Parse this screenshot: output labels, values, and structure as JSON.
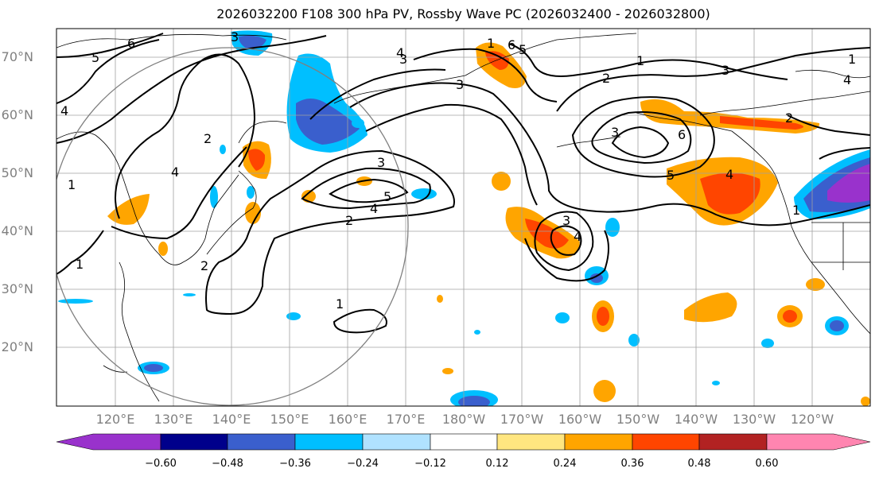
{
  "title": "2026032200 F108 300 hPa PV, Rossby Wave PC (2026032400 - 2026032800)",
  "latitude_labels": [
    "70°N",
    "60°N",
    "50°N",
    "40°N",
    "30°N",
    "20°N"
  ],
  "longitude_labels": [
    "120°E",
    "130°E",
    "140°E",
    "150°E",
    "160°E",
    "170°E",
    "180°W",
    "170°W",
    "160°W",
    "150°W",
    "140°W",
    "130°W",
    "120°W"
  ],
  "colorbar": {
    "tick_labels": [
      "−0.60",
      "−0.48",
      "−0.36",
      "−0.24",
      "−0.12",
      "0.12",
      "0.24",
      "0.36",
      "0.48",
      "0.60"
    ],
    "colors": [
      "#9932cc",
      "#00008b",
      "#3a5fcd",
      "#00bfff",
      "#b0e2ff",
      "#ffffff",
      "#ffe680",
      "#ffa500",
      "#ff4500",
      "#b22222",
      "#ff85b0"
    ]
  },
  "contour_labels": [
    "5",
    "6",
    "4",
    "4",
    "3",
    "2",
    "2",
    "1",
    "5",
    "4",
    "1",
    "1",
    "4",
    "3",
    "3",
    "6",
    "5",
    "1",
    "2",
    "3",
    "3",
    "4",
    "1",
    "2",
    "6",
    "3",
    "4",
    "2",
    "1",
    "5",
    "4",
    "1",
    "3"
  ]
}
